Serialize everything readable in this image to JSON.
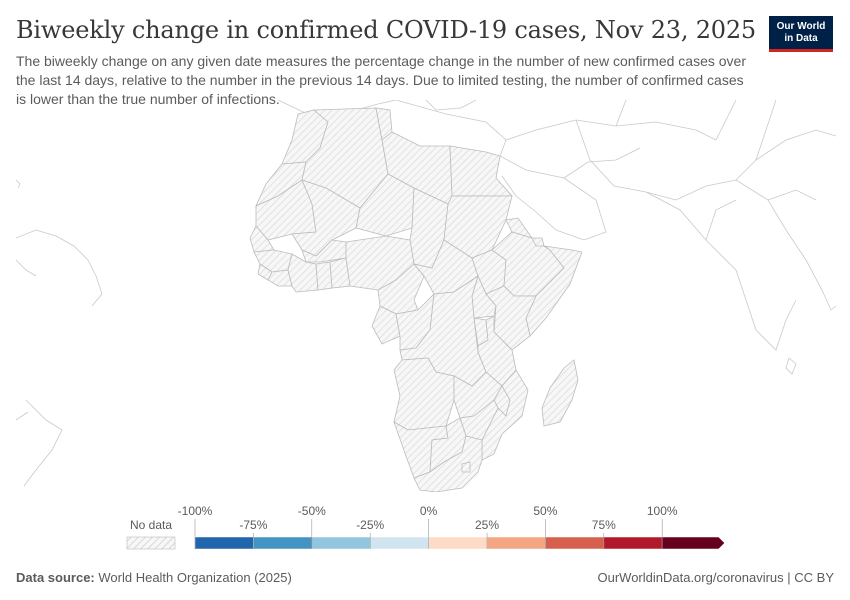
{
  "header": {
    "title": "Biweekly change in confirmed COVID-19 cases, Nov 23, 2025",
    "subtitle": "The biweekly change on any given date measures the percentage change in the number of new confirmed cases over the last 14 days, relative to the number in the previous 14 days. Due to limited testing, the number of confirmed cases is lower than the true number of infections."
  },
  "logo": {
    "line1": "Our World",
    "line2": "in Data",
    "bg_color": "#002147",
    "accent_color": "#ce261e"
  },
  "legend": {
    "no_data_label": "No data",
    "ticks": [
      "-100%",
      "-75%",
      "-50%",
      "-25%",
      "0%",
      "25%",
      "50%",
      "75%",
      "100%"
    ],
    "bins": [
      {
        "from": -100,
        "to": -75,
        "color": "#2166ac"
      },
      {
        "from": -75,
        "to": -50,
        "color": "#4393c3"
      },
      {
        "from": -50,
        "to": -25,
        "color": "#92c5de"
      },
      {
        "from": -25,
        "to": 0,
        "color": "#d1e5f0"
      },
      {
        "from": 0,
        "to": 25,
        "color": "#fddbc7"
      },
      {
        "from": 25,
        "to": 50,
        "color": "#f4a582"
      },
      {
        "from": 50,
        "to": 75,
        "color": "#d6604d"
      },
      {
        "from": 75,
        "to": 100,
        "color": "#b2182b"
      },
      {
        "from": 100,
        "to": null,
        "color": "#67001f"
      }
    ]
  },
  "map": {
    "region": "Africa",
    "all_countries_status": "No data",
    "border_color": "#bbbbbb"
  },
  "footer": {
    "source_label": "Data source:",
    "source_value": "World Health Organization (2025)",
    "right": "OurWorldinData.org/coronavirus | CC BY"
  }
}
